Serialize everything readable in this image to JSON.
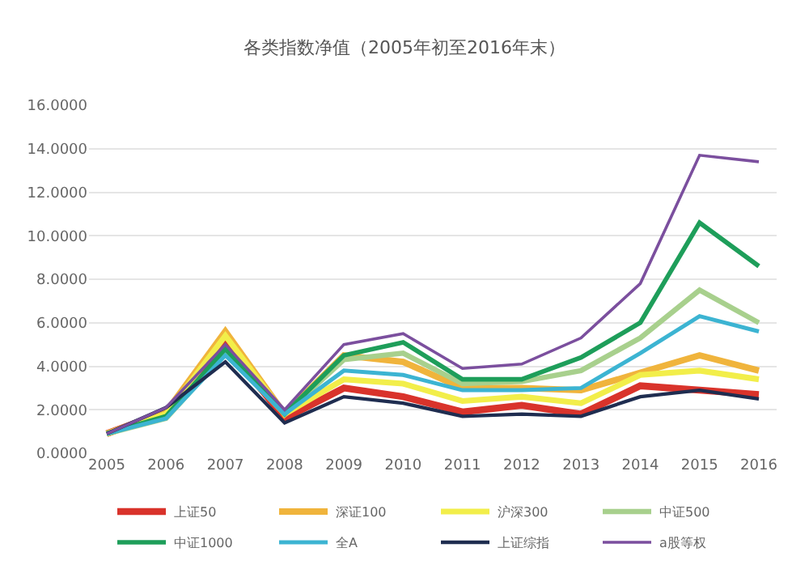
{
  "chart_data": {
    "type": "line",
    "title": "各类指数净值（2005年初至2016年末）",
    "categories": [
      "2005",
      "2006",
      "2007",
      "2008",
      "2009",
      "2010",
      "2011",
      "2012",
      "2013",
      "2014",
      "2015",
      "2016"
    ],
    "series": [
      {
        "name": "上证50",
        "color": "#d9332b",
        "values": [
          0.9,
          1.9,
          5.0,
          1.6,
          3.0,
          2.6,
          1.9,
          2.2,
          1.8,
          3.1,
          2.9,
          2.7
        ]
      },
      {
        "name": "深证100",
        "color": "#f0b43c",
        "values": [
          0.9,
          1.9,
          5.6,
          1.8,
          4.5,
          4.2,
          3.0,
          3.0,
          2.9,
          3.7,
          4.5,
          3.8
        ]
      },
      {
        "name": "沪深300",
        "color": "#f2ee4a",
        "values": [
          0.9,
          1.8,
          5.4,
          1.8,
          3.4,
          3.2,
          2.4,
          2.6,
          2.3,
          3.6,
          3.8,
          3.4
        ]
      },
      {
        "name": "中证500",
        "color": "#a8d08d",
        "values": [
          0.9,
          1.6,
          4.6,
          1.8,
          4.3,
          4.6,
          3.2,
          3.3,
          3.8,
          5.3,
          7.5,
          6.0
        ]
      },
      {
        "name": "中证1000",
        "color": "#1e9e5a",
        "values": [
          0.9,
          1.7,
          4.8,
          1.8,
          4.5,
          5.1,
          3.4,
          3.4,
          4.4,
          6.0,
          10.6,
          8.6
        ]
      },
      {
        "name": "全A",
        "color": "#3cb4d2",
        "values": [
          0.9,
          1.6,
          4.5,
          1.8,
          3.8,
          3.6,
          2.9,
          2.9,
          3.0,
          4.6,
          6.3,
          5.6
        ]
      },
      {
        "name": "上证综指",
        "color": "#1f2d50",
        "values": [
          0.9,
          2.1,
          4.2,
          1.4,
          2.6,
          2.3,
          1.7,
          1.8,
          1.7,
          2.6,
          2.9,
          2.5
        ]
      },
      {
        "name": "a股等权",
        "color": "#7b4f9e",
        "values": [
          0.9,
          2.1,
          5.0,
          2.0,
          5.0,
          5.5,
          3.9,
          4.1,
          5.3,
          7.8,
          13.7,
          13.4
        ]
      }
    ],
    "ylim": [
      0,
      16
    ],
    "yticks": [
      {
        "value": 0,
        "label": "0.0000"
      },
      {
        "value": 2,
        "label": "2.0000"
      },
      {
        "value": 4,
        "label": "4.0000"
      },
      {
        "value": 6,
        "label": "6.0000"
      },
      {
        "value": 8,
        "label": "8.0000"
      },
      {
        "value": 10,
        "label": "10.0000"
      },
      {
        "value": 12,
        "label": "12.0000"
      },
      {
        "value": 14,
        "label": "14.0000"
      },
      {
        "value": 16,
        "label": "16.0000"
      }
    ],
    "grid": "y",
    "legend": "bottom",
    "marker": "none",
    "line_style": "solid"
  }
}
